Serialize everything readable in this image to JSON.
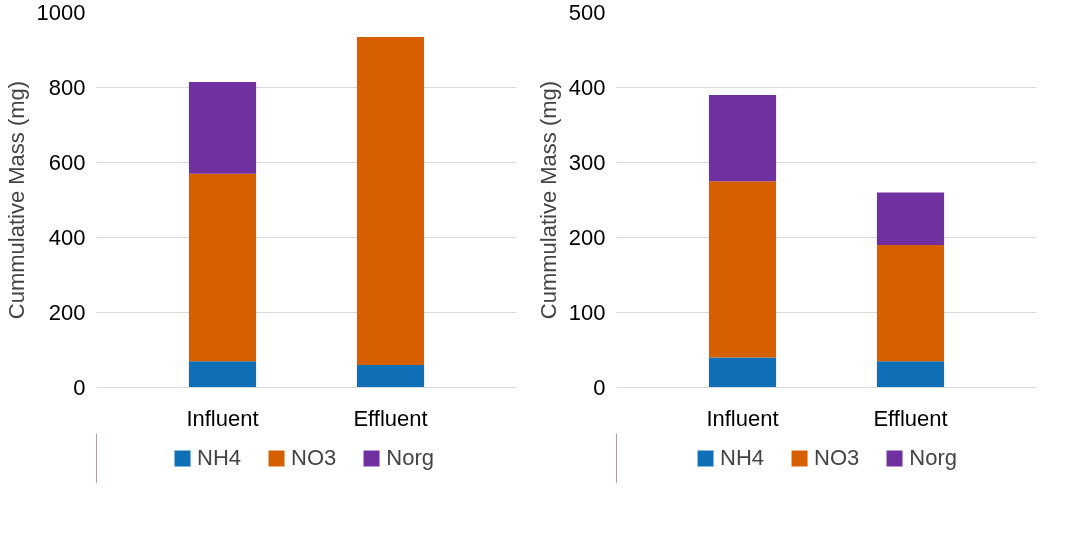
{
  "chart_data": [
    {
      "type": "bar",
      "stacked": true,
      "categories": [
        "Influent",
        "Effluent"
      ],
      "ylabel": "Cummulative Mass (mg)",
      "ylim": [
        0,
        1000
      ],
      "yticks": [
        0,
        200,
        400,
        600,
        800,
        1000
      ],
      "grid": "y",
      "legend": "bottom",
      "series": [
        {
          "name": "NH4",
          "color": "#0f70b7",
          "values": [
            70,
            60
          ]
        },
        {
          "name": "NO3",
          "color": "#d65f00",
          "values": [
            500,
            875
          ]
        },
        {
          "name": "Norg",
          "color": "#7030a0",
          "values": [
            245,
            0
          ]
        }
      ]
    },
    {
      "type": "bar",
      "stacked": true,
      "categories": [
        "Influent",
        "Effluent"
      ],
      "ylabel": "Cummulative Mass (mg)",
      "ylim": [
        0,
        500
      ],
      "yticks": [
        0,
        100,
        200,
        300,
        400,
        500
      ],
      "grid": "y",
      "legend": "bottom",
      "series": [
        {
          "name": "NH4",
          "color": "#0f70b7",
          "values": [
            40,
            35
          ]
        },
        {
          "name": "NO3",
          "color": "#d65f00",
          "values": [
            235,
            155
          ]
        },
        {
          "name": "Norg",
          "color": "#7030a0",
          "values": [
            115,
            70
          ]
        }
      ]
    }
  ]
}
